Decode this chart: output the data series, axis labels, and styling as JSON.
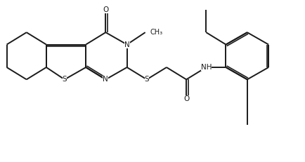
{
  "background_color": "#ffffff",
  "line_color": "#1a1a1a",
  "line_width": 1.4,
  "font_size": 7.5,
  "figsize": [
    4.35,
    2.31
  ],
  "dpi": 100,
  "xlim": [
    0,
    10
  ],
  "ylim": [
    0,
    5.3
  ]
}
